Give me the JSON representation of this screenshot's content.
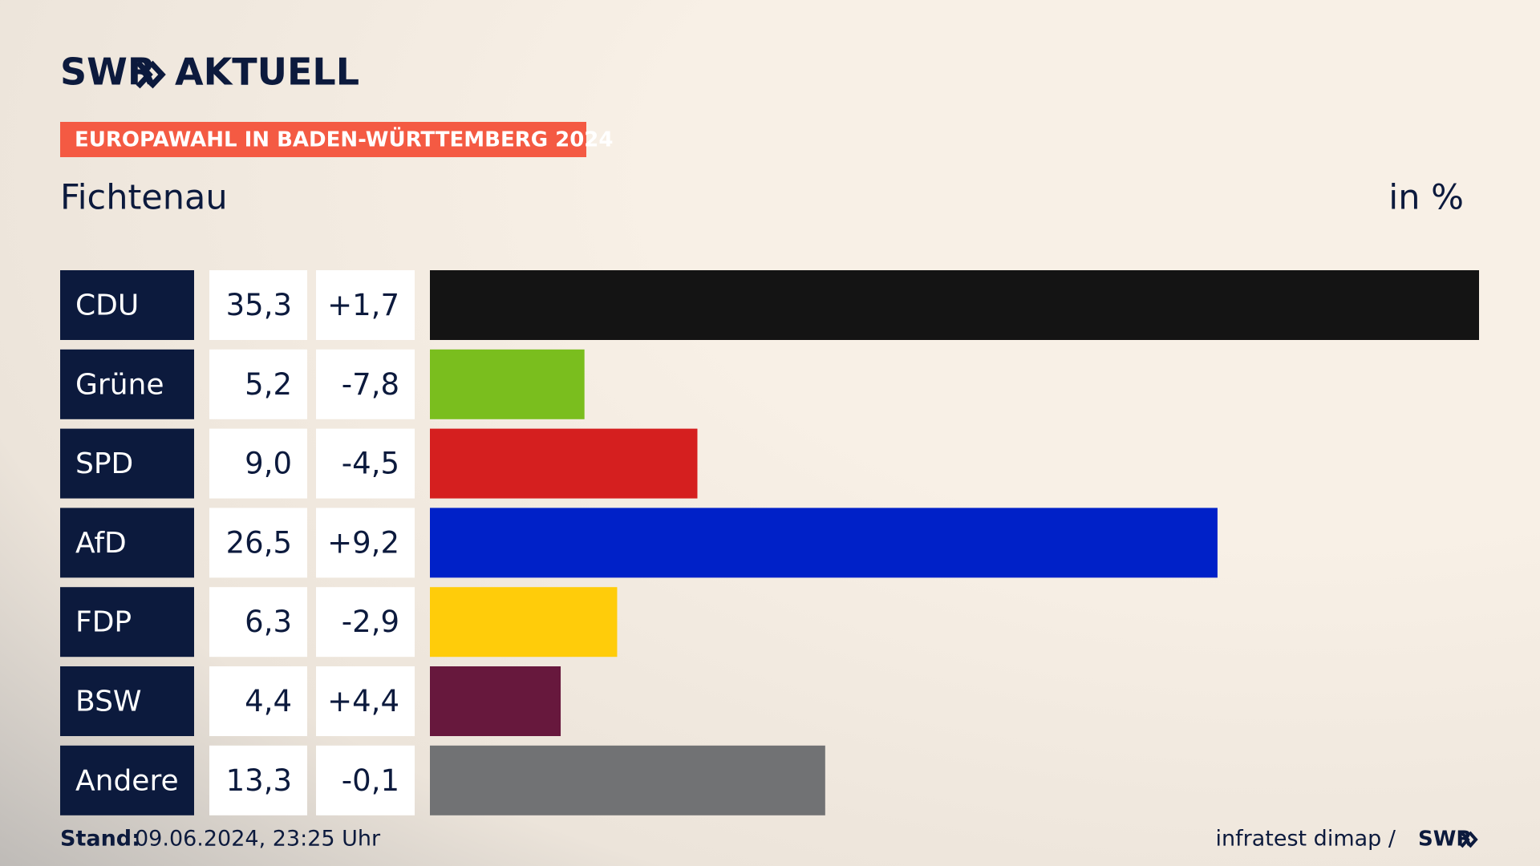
{
  "chart_data": {
    "type": "bar",
    "logo": "SWR",
    "logo_text": "AKTUELL",
    "badge": "EUROPAWAHL IN BADEN-WÜRTTEMBERG 2024",
    "title": "Fichtenau",
    "unit": "in %",
    "categories": [
      "CDU",
      "Grüne",
      "SPD",
      "AfD",
      "FDP",
      "BSW",
      "Andere"
    ],
    "values": [
      35.3,
      5.2,
      9.0,
      26.5,
      6.3,
      4.4,
      13.3
    ],
    "value_labels": [
      "35,3",
      "5,2",
      "9,0",
      "26,5",
      "6,3",
      "4,4",
      "13,3"
    ],
    "changes": [
      1.7,
      -7.8,
      -4.5,
      9.2,
      -2.9,
      4.4,
      -0.1
    ],
    "change_labels": [
      "+1,7",
      "-7,8",
      "-4,5",
      "+9,2",
      "-2,9",
      "+4,4",
      "-0,1"
    ],
    "colors": [
      "#141414",
      "#7abe1e",
      "#d51f1f",
      "#0021c8",
      "#ffcc0a",
      "#67183d",
      "#717274"
    ],
    "footer_label": "Stand:",
    "footer_date": "09.06.2024, 23:25 Uhr",
    "source": "infratest dimap /",
    "source_logo": "SWR"
  }
}
